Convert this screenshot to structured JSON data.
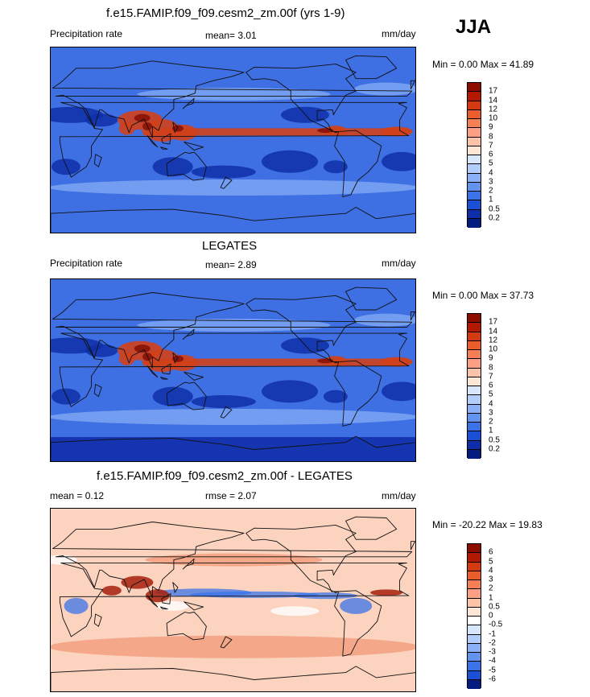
{
  "season": "JJA",
  "panels": [
    {
      "title": "f.e15.FAMIP.f09_f09.cesm2_zm.00f (yrs 1-9)",
      "left_label": "Precipitation rate",
      "center_label": "mean=   3.01",
      "right_label": "mm/day",
      "minmax": "Min =   0.00 Max =  41.89",
      "levels": [
        "17",
        "14",
        "12",
        "10",
        "9",
        "8",
        "7",
        "6",
        "5",
        "4",
        "3",
        "2",
        "1",
        "0.5",
        "0.2"
      ],
      "colors": [
        "#8c0d00",
        "#b31800",
        "#d43a12",
        "#ec5d2e",
        "#f67f55",
        "#fba083",
        "#fdc3a8",
        "#fde6d6",
        "#d8e6fc",
        "#b3cdfa",
        "#8ab0f5",
        "#6193ef",
        "#3a73e8",
        "#1b4fd6",
        "#0d2ea8",
        "#061b80"
      ],
      "map_colors": {
        "base": "#3e6fe3",
        "dry": "#0f2fa8",
        "wet": "#d1401a",
        "very_wet": "#8a1206",
        "moist": "#8ab0f5"
      }
    },
    {
      "title": "LEGATES",
      "left_label": "Precipitation rate",
      "center_label": "mean=   2.89",
      "right_label": "mm/day",
      "minmax": "Min =   0.00 Max =  37.73",
      "levels": [
        "17",
        "14",
        "12",
        "10",
        "9",
        "8",
        "7",
        "6",
        "5",
        "4",
        "3",
        "2",
        "1",
        "0.5",
        "0.2"
      ],
      "colors": [
        "#8c0d00",
        "#b31800",
        "#d43a12",
        "#ec5d2e",
        "#f67f55",
        "#fba083",
        "#fdc3a8",
        "#fde6d6",
        "#d8e6fc",
        "#b3cdfa",
        "#8ab0f5",
        "#6193ef",
        "#3a73e8",
        "#1b4fd6",
        "#0d2ea8",
        "#061b80"
      ],
      "map_colors": {
        "base": "#3e6fe3",
        "dry": "#0f2fa8",
        "wet": "#d1401a",
        "very_wet": "#8a1206",
        "moist": "#8ab0f5"
      }
    },
    {
      "title": "f.e15.FAMIP.f09_f09.cesm2_zm.00f - LEGATES",
      "left_label": "mean =   0.12",
      "center_label": "rmse =   2.07",
      "right_label": "mm/day",
      "minmax": "Min = -20.22 Max =  19.83",
      "levels": [
        "6",
        "5",
        "4",
        "3",
        "2",
        "1",
        "0.5",
        "0",
        "-0.5",
        "-1",
        "-2",
        "-3",
        "-4",
        "-5",
        "-6"
      ],
      "colors": [
        "#8c0d00",
        "#b31800",
        "#d43a12",
        "#ec5d2e",
        "#f67f55",
        "#fba083",
        "#fdc3a8",
        "#fde6d6",
        "#ffffff",
        "#d8e6fc",
        "#b3cdfa",
        "#8ab0f5",
        "#6193ef",
        "#3a73e8",
        "#1b4fd6",
        "#061b80"
      ],
      "map_colors": {
        "base": "#fbd3bf",
        "dry": "#3a73e8",
        "wet": "#e4542a",
        "very_wet": "#a51f0a",
        "moist": "#ffffff"
      }
    }
  ]
}
